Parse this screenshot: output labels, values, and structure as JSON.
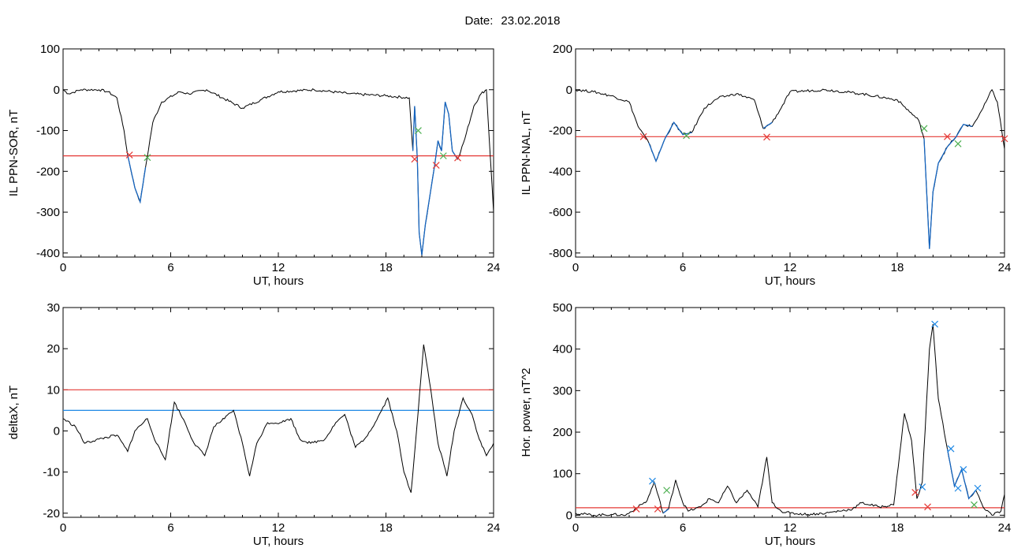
{
  "header": {
    "date_label": "Date:",
    "date_value": "23.02.2018"
  },
  "colors": {
    "data": "#000000",
    "event": "#1565c0",
    "threshold": "#e53935",
    "threshold2": "#1e88e5",
    "start_marker": "#e53935",
    "end_marker": "#4caf50",
    "peak_marker": "#1e88e5"
  },
  "chart_data": [
    {
      "type": "line",
      "title": "",
      "xlabel": "UT, hours",
      "ylabel": "IL PPN-SOR, nT",
      "xlim": [
        0,
        24
      ],
      "ylim": [
        -410,
        100
      ],
      "xticks": [
        0,
        6,
        12,
        18,
        24
      ],
      "yticks": [
        100,
        0,
        -100,
        -200,
        -300,
        -400
      ],
      "series": [
        {
          "values": [
            [
              0,
              0
            ],
            [
              0.3,
              -10
            ],
            [
              1,
              0
            ],
            [
              2,
              0
            ],
            [
              2.5,
              -5
            ],
            [
              3,
              -20
            ],
            [
              3.4,
              -100
            ],
            [
              3.6,
              -160
            ],
            [
              4.0,
              -240
            ],
            [
              4.3,
              -275
            ],
            [
              4.6,
              -190
            ],
            [
              5.0,
              -80
            ],
            [
              5.5,
              -30
            ],
            [
              6.5,
              -5
            ],
            [
              7,
              -10
            ],
            [
              8,
              0
            ],
            [
              10,
              -45
            ],
            [
              11,
              -25
            ],
            [
              12,
              -5
            ],
            [
              14,
              0
            ],
            [
              16,
              -10
            ],
            [
              18,
              -15
            ],
            [
              19.3,
              -20
            ],
            [
              19.5,
              -150
            ],
            [
              19.6,
              -40
            ],
            [
              19.75,
              -170
            ],
            [
              19.85,
              -350
            ],
            [
              20.0,
              -405
            ],
            [
              20.2,
              -330
            ],
            [
              20.5,
              -245
            ],
            [
              20.7,
              -190
            ],
            [
              20.9,
              -125
            ],
            [
              21.1,
              -150
            ],
            [
              21.3,
              -30
            ],
            [
              21.5,
              -60
            ],
            [
              21.7,
              -150
            ],
            [
              22.0,
              -170
            ],
            [
              22.4,
              -120
            ],
            [
              22.9,
              -40
            ],
            [
              23.3,
              -10
            ],
            [
              23.6,
              0
            ],
            [
              24,
              -300
            ]
          ]
        }
      ],
      "thresholds": [
        -162
      ],
      "markers": [
        [
          3.7,
          -160
        ],
        [
          4.7,
          -166
        ],
        [
          19.6,
          -170
        ],
        [
          19.8,
          -100
        ],
        [
          20.8,
          -185
        ],
        [
          21.2,
          -162
        ],
        [
          22.0,
          -167
        ]
      ]
    },
    {
      "type": "line",
      "title": "",
      "xlabel": "UT, hours",
      "ylabel": "IL PPN-NAL, nT",
      "xlim": [
        0,
        24
      ],
      "ylim": [
        -820,
        200
      ],
      "xticks": [
        0,
        6,
        12,
        18,
        24
      ],
      "yticks": [
        200,
        0,
        -200,
        -400,
        -600,
        -800
      ],
      "series": [
        {
          "values": [
            [
              0,
              0
            ],
            [
              1,
              -10
            ],
            [
              2,
              -30
            ],
            [
              3,
              -60
            ],
            [
              3.5,
              -180
            ],
            [
              4.1,
              -260
            ],
            [
              4.5,
              -350
            ],
            [
              5.0,
              -240
            ],
            [
              5.5,
              -160
            ],
            [
              6.0,
              -220
            ],
            [
              6.5,
              -210
            ],
            [
              7.2,
              -90
            ],
            [
              8,
              -40
            ],
            [
              9,
              -20
            ],
            [
              10,
              -50
            ],
            [
              10.5,
              -190
            ],
            [
              11.0,
              -160
            ],
            [
              11.5,
              -90
            ],
            [
              12,
              -10
            ],
            [
              14,
              0
            ],
            [
              16,
              -20
            ],
            [
              18,
              -50
            ],
            [
              19.2,
              -150
            ],
            [
              19.5,
              -240
            ],
            [
              19.8,
              -780
            ],
            [
              20.0,
              -500
            ],
            [
              20.3,
              -360
            ],
            [
              20.8,
              -280
            ],
            [
              21.3,
              -230
            ],
            [
              21.7,
              -170
            ],
            [
              22.2,
              -180
            ],
            [
              22.8,
              -90
            ],
            [
              23.3,
              0
            ],
            [
              23.6,
              -60
            ],
            [
              24,
              -290
            ]
          ]
        }
      ],
      "thresholds": [
        -230
      ],
      "markers": [
        [
          3.8,
          -230
        ],
        [
          6.2,
          -225
        ],
        [
          10.7,
          -232
        ],
        [
          19.5,
          -190
        ],
        [
          20.8,
          -230
        ],
        [
          21.4,
          -265
        ],
        [
          24,
          -240
        ]
      ]
    },
    {
      "type": "line",
      "title": "",
      "xlabel": "UT, hours",
      "ylabel": "deltaX, nT",
      "xlim": [
        0,
        24
      ],
      "ylim": [
        -21,
        30
      ],
      "xticks": [
        0,
        6,
        12,
        18,
        24
      ],
      "yticks": [
        30,
        20,
        10,
        0,
        -10,
        -20
      ],
      "series": [
        {
          "values": [
            [
              0,
              3
            ],
            [
              0.7,
              1
            ],
            [
              1.2,
              -3
            ],
            [
              2,
              -2
            ],
            [
              3,
              -1
            ],
            [
              3.6,
              -5
            ],
            [
              4.0,
              0
            ],
            [
              4.7,
              3
            ],
            [
              5.2,
              -3
            ],
            [
              5.7,
              -7
            ],
            [
              6.2,
              7
            ],
            [
              6.8,
              2
            ],
            [
              7.3,
              -3
            ],
            [
              7.9,
              -6
            ],
            [
              8.4,
              1
            ],
            [
              9.0,
              3
            ],
            [
              9.5,
              5
            ],
            [
              10.0,
              -3
            ],
            [
              10.4,
              -11
            ],
            [
              10.8,
              -3
            ],
            [
              11.4,
              2
            ],
            [
              12.1,
              2
            ],
            [
              12.7,
              3
            ],
            [
              13.2,
              -2
            ],
            [
              13.8,
              -3
            ],
            [
              14.6,
              -2
            ],
            [
              15.2,
              2
            ],
            [
              15.7,
              4
            ],
            [
              16.3,
              -4
            ],
            [
              16.8,
              -2
            ],
            [
              17.4,
              2
            ],
            [
              18.1,
              8
            ],
            [
              18.6,
              0
            ],
            [
              19.0,
              -10
            ],
            [
              19.4,
              -15
            ],
            [
              19.8,
              5
            ],
            [
              20.1,
              21
            ],
            [
              20.5,
              10
            ],
            [
              20.9,
              -3
            ],
            [
              21.4,
              -11
            ],
            [
              21.8,
              0
            ],
            [
              22.3,
              8
            ],
            [
              22.8,
              4
            ],
            [
              23.2,
              -2
            ],
            [
              23.6,
              -6
            ],
            [
              24,
              -3
            ]
          ]
        }
      ],
      "thresholds": [
        10,
        5
      ]
    },
    {
      "type": "line",
      "title": "",
      "xlabel": "UT, hours",
      "ylabel": "Hor. power, nT^2",
      "xlim": [
        0,
        24
      ],
      "ylim": [
        -5,
        500
      ],
      "xticks": [
        0,
        6,
        12,
        18,
        24
      ],
      "yticks": [
        500,
        400,
        300,
        200,
        100,
        0
      ],
      "series": [
        {
          "values": [
            [
              0,
              5
            ],
            [
              1,
              0
            ],
            [
              2,
              2
            ],
            [
              2.8,
              0
            ],
            [
              3.5,
              20
            ],
            [
              4.0,
              35
            ],
            [
              4.4,
              80
            ],
            [
              4.9,
              5
            ],
            [
              5.2,
              15
            ],
            [
              5.6,
              85
            ],
            [
              6.0,
              30
            ],
            [
              6.3,
              10
            ],
            [
              7.0,
              20
            ],
            [
              7.5,
              40
            ],
            [
              8.0,
              30
            ],
            [
              8.5,
              70
            ],
            [
              9.0,
              30
            ],
            [
              9.6,
              60
            ],
            [
              10.2,
              20
            ],
            [
              10.7,
              140
            ],
            [
              11.0,
              30
            ],
            [
              11.5,
              10
            ],
            [
              12.0,
              5
            ],
            [
              13,
              2
            ],
            [
              14,
              5
            ],
            [
              15.5,
              15
            ],
            [
              16.0,
              30
            ],
            [
              17.0,
              20
            ],
            [
              17.8,
              25
            ],
            [
              18.4,
              245
            ],
            [
              18.8,
              180
            ],
            [
              19.1,
              40
            ],
            [
              19.4,
              80
            ],
            [
              19.8,
              400
            ],
            [
              20.0,
              460
            ],
            [
              20.3,
              280
            ],
            [
              20.8,
              160
            ],
            [
              21.2,
              70
            ],
            [
              21.6,
              110
            ],
            [
              22.0,
              40
            ],
            [
              22.4,
              60
            ],
            [
              22.8,
              20
            ],
            [
              23.3,
              0
            ],
            [
              23.8,
              10
            ],
            [
              24,
              50
            ]
          ]
        }
      ],
      "thresholds": [
        18
      ],
      "markers": [
        [
          3.4,
          15
        ],
        [
          4.3,
          82
        ],
        [
          4.6,
          15
        ],
        [
          5.1,
          60
        ],
        [
          19.0,
          55
        ],
        [
          19.4,
          68
        ],
        [
          19.7,
          20
        ],
        [
          20.1,
          460
        ],
        [
          21.0,
          160
        ],
        [
          21.4,
          65
        ],
        [
          21.7,
          110
        ],
        [
          22.3,
          25
        ],
        [
          22.5,
          65
        ]
      ]
    }
  ]
}
